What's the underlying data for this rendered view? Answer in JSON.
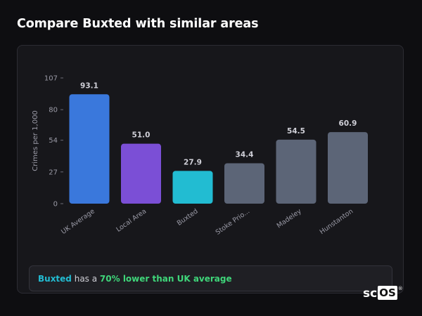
{
  "page": {
    "title": "Compare Buxted with similar areas"
  },
  "chart_data": {
    "type": "bar",
    "ylabel": "Crimes per 1,000",
    "xlabel": "",
    "ylim": [
      0,
      107
    ],
    "yticks": [
      0,
      27,
      54,
      80,
      107
    ],
    "grid": false,
    "categories": [
      "UK Average",
      "Local Area",
      "Buxted",
      "Stoke Prio...",
      "Madeley",
      "Hunstanton"
    ],
    "values": [
      93.1,
      51.0,
      27.9,
      34.4,
      54.5,
      60.9
    ],
    "value_labels": [
      "93.1",
      "51.0",
      "27.9",
      "34.4",
      "54.5",
      "60.9"
    ],
    "colors": [
      "#3a78dc",
      "#7b4fd6",
      "#22bcd2",
      "#5c6577",
      "#5c6577",
      "#5c6577"
    ]
  },
  "summary": {
    "place": "Buxted",
    "middle": " has a ",
    "difference": "70% lower than UK average"
  },
  "brand": {
    "left": "sc",
    "right": "OS",
    "mark": "®"
  }
}
